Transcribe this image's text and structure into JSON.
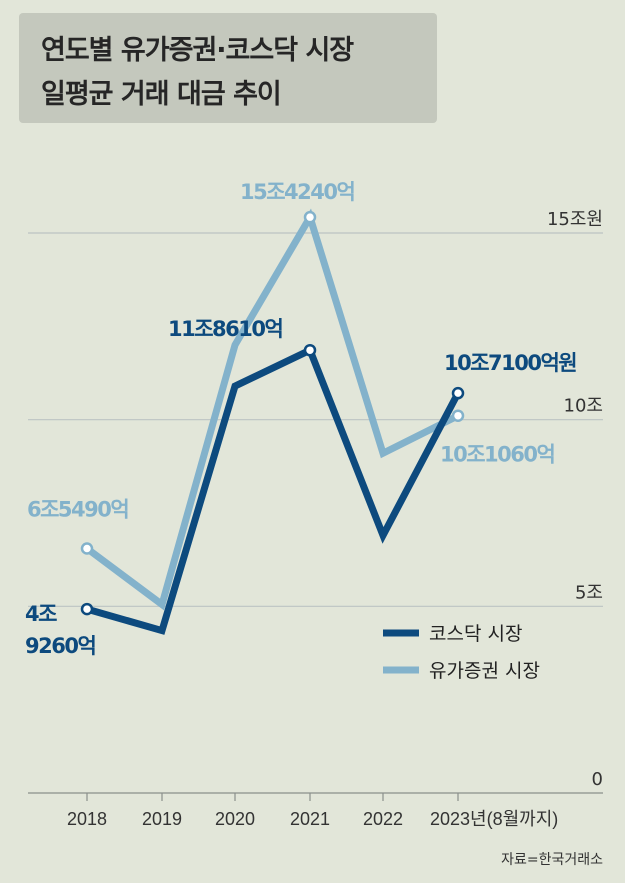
{
  "title": {
    "line1": "연도별 유가증권·코스닥 시장",
    "line2": "일평균 거래 대금 추이"
  },
  "source": "자료=한국거래소",
  "colors": {
    "kosdaq": "#0d4a7e",
    "kospi": "#83b2cb",
    "grid": "#bcc3c3"
  },
  "chart_data": {
    "type": "line",
    "categories": [
      "2018",
      "2019",
      "2020",
      "2021",
      "2022",
      "2023년(8월까지)"
    ],
    "y_tick_labels": [
      "15조원",
      "10조",
      "5조",
      "0"
    ],
    "y_ticks": [
      15,
      10,
      5,
      0
    ],
    "ylim": [
      0,
      15
    ],
    "unit": "조원",
    "grid": true,
    "legend_position": "bottom-right",
    "series": [
      {
        "name": "코스닥 시장",
        "color": "#0d4a7e",
        "values": [
          4.926,
          4.35,
          10.9,
          11.861,
          6.9,
          10.71
        ],
        "labels": [
          {
            "index": 0,
            "lines": [
              "4조",
              "9260억"
            ]
          },
          {
            "index": 3,
            "lines": [
              "11조8610억"
            ]
          },
          {
            "index": 5,
            "lines": [
              "10조7100억원"
            ]
          }
        ]
      },
      {
        "name": "유가증권 시장",
        "color": "#83b2cb",
        "values": [
          6.549,
          5.05,
          12.0,
          15.424,
          9.1,
          10.106
        ],
        "labels": [
          {
            "index": 0,
            "lines": [
              "6조5490억"
            ]
          },
          {
            "index": 3,
            "lines": [
              "15조4240억"
            ]
          },
          {
            "index": 5,
            "lines": [
              "10조1060억"
            ]
          }
        ]
      }
    ]
  }
}
